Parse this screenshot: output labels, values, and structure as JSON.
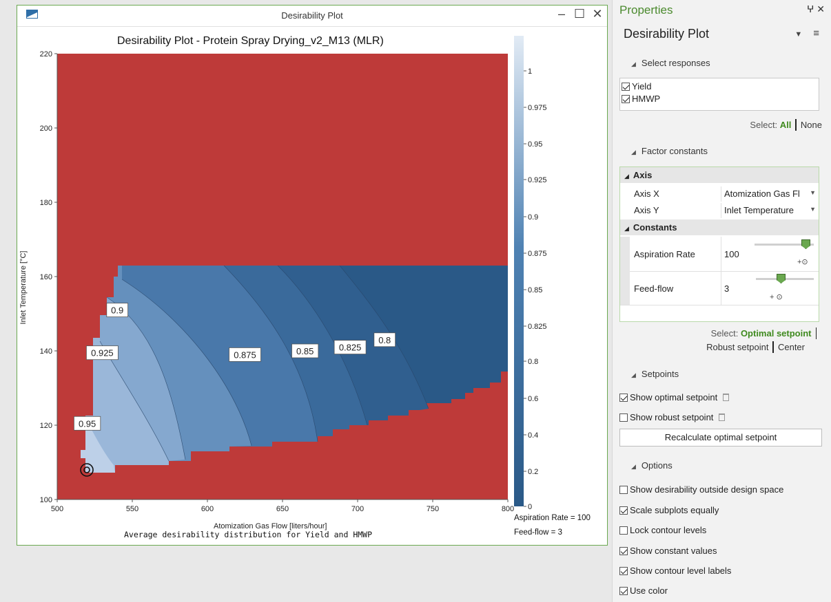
{
  "window": {
    "title": "Desirability Plot"
  },
  "plot": {
    "title": "Desirability Plot - Protein Spray Drying_v2_M13 (MLR)",
    "xlabel": "Atomization Gas Flow [liters/hour]",
    "ylabel": "Inlet Temperature [°C]",
    "footnote": "Average desirability distribution for Yield and HMWP",
    "constants_text": [
      "Aspiration Rate = 100",
      "Feed-flow = 3"
    ]
  },
  "chart_data": {
    "type": "heatmap",
    "title": "Desirability Plot - Protein Spray Drying_v2_M13 (MLR)",
    "xlabel": "Atomization Gas Flow [liters/hour]",
    "ylabel": "Inlet Temperature [°C]",
    "xlim": [
      500,
      800
    ],
    "ylim": [
      100,
      220
    ],
    "x_ticks": [
      "500",
      "550",
      "600",
      "650",
      "700",
      "750",
      "800"
    ],
    "y_ticks": [
      "100",
      "120",
      "140",
      "160",
      "180",
      "200",
      "220"
    ],
    "colorbar_ticks": [
      "0",
      "0.2",
      "0.4",
      "0.6",
      "0.8",
      "0.825",
      "0.85",
      "0.875",
      "0.9",
      "0.925",
      "0.95",
      "0.975",
      "1"
    ],
    "contour_labels": [
      "0.95",
      "0.925",
      "0.9",
      "0.875",
      "0.85",
      "0.825",
      "0.8"
    ],
    "optimal_setpoint": {
      "x": 519,
      "y": 108
    },
    "colors": {
      "outside": "#be3a39",
      "low": "#2a5987",
      "high": "#c6d7eb"
    }
  },
  "panel": {
    "header": "Properties",
    "pin_icons": "§ ×",
    "subtitle": "Desirability Plot",
    "sections": {
      "select_responses": "Select responses",
      "factor_constants": "Factor constants",
      "setpoints": "Setpoints",
      "options": "Options"
    },
    "responses": [
      {
        "label": "Yield",
        "checked": true
      },
      {
        "label": "HMWP",
        "checked": true
      }
    ],
    "select_label": "Select:",
    "select_all": "All",
    "select_none": "None",
    "axis_group": "Axis",
    "axis_x_label": "Axis X",
    "axis_x_value": "Atomization Gas Fl",
    "axis_y_label": "Axis Y",
    "axis_y_value": "Inlet Temperature",
    "constants_group": "Constants",
    "aspiration_label": "Aspiration Rate",
    "aspiration_value": "100",
    "feed_label": "Feed-flow",
    "feed_value": "3",
    "setpoint_select_label": "Select:",
    "optimal_setpoint": "Optimal setpoint",
    "robust_setpoint": "Robust setpoint",
    "center": "Center",
    "show_optimal": "Show optimal setpoint",
    "show_robust": "Show robust setpoint",
    "recalculate": "Recalculate optimal setpoint",
    "options": [
      {
        "label": "Show desirability outside design space",
        "checked": false
      },
      {
        "label": "Scale subplots equally",
        "checked": true
      },
      {
        "label": "Lock contour levels",
        "checked": false
      },
      {
        "label": "Show constant values",
        "checked": true
      },
      {
        "label": "Show contour level labels",
        "checked": true
      },
      {
        "label": "Use color",
        "checked": true
      }
    ]
  }
}
